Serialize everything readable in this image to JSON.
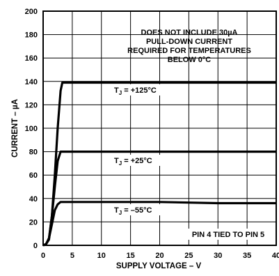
{
  "chart_data": {
    "type": "line",
    "xlabel": "SUPPLY VOLTAGE – V",
    "ylabel": "CURRENT – µA",
    "xlim": [
      0,
      40
    ],
    "ylim": [
      0,
      200
    ],
    "x_ticks": [
      0,
      5,
      10,
      15,
      20,
      25,
      30,
      35,
      40
    ],
    "y_ticks": [
      0,
      20,
      40,
      60,
      80,
      100,
      120,
      140,
      160,
      180,
      200
    ],
    "grid": true,
    "annotations": [
      {
        "lines": [
          "DOES NOT INCLUDE 30µA",
          "PULL-DOWN CURRENT",
          "REQUIRED FOR TEMPERATURES",
          "BELOW 0°C"
        ]
      },
      {
        "lines": [
          "PIN 4 TIED TO PIN 5"
        ]
      }
    ],
    "series": [
      {
        "label_main": "T",
        "label_sub": "J",
        "label_rest": " = +125°C",
        "points": [
          [
            0,
            0
          ],
          [
            0.5,
            1
          ],
          [
            1,
            5
          ],
          [
            1.5,
            25
          ],
          [
            2,
            60
          ],
          [
            2.5,
            100
          ],
          [
            3,
            132
          ],
          [
            3.3,
            139
          ],
          [
            4,
            139
          ],
          [
            10,
            139
          ],
          [
            20,
            139
          ],
          [
            30,
            139
          ],
          [
            40,
            139
          ]
        ]
      },
      {
        "label_main": "T",
        "label_sub": "J",
        "label_rest": " = +25°C",
        "points": [
          [
            0,
            0
          ],
          [
            0.5,
            1
          ],
          [
            1,
            6
          ],
          [
            1.5,
            25
          ],
          [
            2,
            50
          ],
          [
            2.5,
            72
          ],
          [
            3,
            80
          ],
          [
            4,
            80
          ],
          [
            10,
            80
          ],
          [
            20,
            80
          ],
          [
            30,
            80
          ],
          [
            40,
            80
          ]
        ]
      },
      {
        "label_main": "T",
        "label_sub": "J",
        "label_rest": " = –55°C",
        "points": [
          [
            0,
            0
          ],
          [
            0.5,
            1
          ],
          [
            1,
            6
          ],
          [
            1.5,
            18
          ],
          [
            2,
            30
          ],
          [
            2.5,
            35
          ],
          [
            3,
            37
          ],
          [
            4,
            37
          ],
          [
            10,
            37
          ],
          [
            20,
            37
          ],
          [
            30,
            36
          ],
          [
            40,
            36
          ]
        ]
      }
    ]
  }
}
